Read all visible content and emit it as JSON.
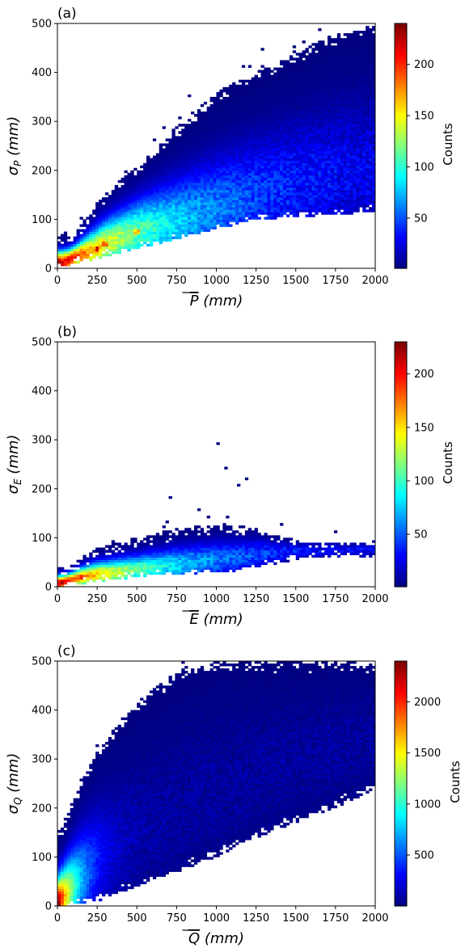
{
  "chart_data": [
    {
      "type": "heatmap",
      "panel_label": "(a)",
      "xlabel": {
        "text": "P (mm)",
        "overline": "P"
      },
      "ylabel": {
        "symbol": "σ",
        "subscript": "P",
        "unit": "(mm)"
      },
      "xlim": [
        0,
        2000
      ],
      "ylim": [
        0,
        500
      ],
      "xticks": [
        0,
        250,
        500,
        750,
        1000,
        1250,
        1500,
        1750,
        2000
      ],
      "yticks": [
        0,
        100,
        200,
        300,
        400,
        500
      ],
      "colorbar": {
        "label": "Counts",
        "min": 1,
        "max": 240,
        "ticks": [
          50,
          100,
          150,
          200
        ]
      },
      "colormap": "jet",
      "density_ridge": [
        [
          40,
          12
        ],
        [
          100,
          22
        ],
        [
          250,
          40
        ],
        [
          300,
          50
        ],
        [
          500,
          75
        ],
        [
          750,
          95
        ],
        [
          1000,
          120
        ],
        [
          1250,
          150
        ],
        [
          1500,
          170
        ],
        [
          1750,
          190
        ],
        [
          2000,
          200
        ]
      ],
      "hotspots": [
        [
          250,
          40,
          240
        ],
        [
          300,
          50,
          220
        ],
        [
          500,
          75,
          200
        ]
      ],
      "extent_upper_sigma": [
        [
          100,
          70
        ],
        [
          250,
          140
        ],
        [
          500,
          210
        ],
        [
          750,
          290
        ],
        [
          1000,
          360
        ],
        [
          1250,
          400
        ],
        [
          1500,
          440
        ],
        [
          1750,
          480
        ],
        [
          2000,
          500
        ]
      ],
      "extent_lower_sigma": [
        [
          50,
          5
        ],
        [
          250,
          20
        ],
        [
          500,
          40
        ],
        [
          750,
          60
        ],
        [
          1000,
          80
        ],
        [
          1250,
          100
        ],
        [
          1500,
          105
        ],
        [
          1750,
          110
        ],
        [
          2000,
          115
        ]
      ]
    },
    {
      "type": "heatmap",
      "panel_label": "(b)",
      "xlabel": {
        "text": "E (mm)",
        "overline": "E"
      },
      "ylabel": {
        "symbol": "σ",
        "subscript": "E",
        "unit": "(mm)"
      },
      "xlim": [
        0,
        2000
      ],
      "ylim": [
        0,
        500
      ],
      "xticks": [
        0,
        250,
        500,
        750,
        1000,
        1250,
        1500,
        1750,
        2000
      ],
      "yticks": [
        0,
        100,
        200,
        300,
        400,
        500
      ],
      "colorbar": {
        "label": "Counts",
        "min": 1,
        "max": 230,
        "ticks": [
          50,
          100,
          150,
          200
        ]
      },
      "colormap": "jet",
      "density_ridge": [
        [
          20,
          8
        ],
        [
          100,
          15
        ],
        [
          150,
          20
        ],
        [
          250,
          25
        ],
        [
          500,
          35
        ],
        [
          750,
          45
        ],
        [
          1000,
          55
        ],
        [
          1250,
          65
        ],
        [
          1550,
          75
        ]
      ],
      "hotspots": [
        [
          150,
          20,
          230
        ],
        [
          220,
          25,
          180
        ]
      ],
      "extent_upper_sigma": [
        [
          50,
          40
        ],
        [
          250,
          80
        ],
        [
          500,
          100
        ],
        [
          750,
          120
        ],
        [
          1000,
          130
        ],
        [
          1250,
          120
        ],
        [
          1550,
          90
        ]
      ],
      "extent_lower_sigma": [
        [
          20,
          2
        ],
        [
          250,
          10
        ],
        [
          500,
          20
        ],
        [
          750,
          25
        ],
        [
          1000,
          30
        ],
        [
          1250,
          35
        ],
        [
          1550,
          60
        ]
      ],
      "outliers": [
        [
          1000,
          290
        ],
        [
          1050,
          240
        ],
        [
          1130,
          205
        ],
        [
          1180,
          218
        ],
        [
          700,
          180
        ],
        [
          880,
          155
        ]
      ]
    },
    {
      "type": "heatmap",
      "panel_label": "(c)",
      "xlabel": {
        "text": "Q (mm)",
        "overline": "Q"
      },
      "ylabel": {
        "symbol": "σ",
        "subscript": "Q",
        "unit": "(mm)"
      },
      "xlim": [
        0,
        2000
      ],
      "ylim": [
        0,
        500
      ],
      "xticks": [
        0,
        250,
        500,
        750,
        1000,
        1250,
        1500,
        1750,
        2000
      ],
      "yticks": [
        0,
        100,
        200,
        300,
        400,
        500
      ],
      "colorbar": {
        "label": "Counts",
        "min": 1,
        "max": 2400,
        "ticks": [
          500,
          1000,
          1500,
          2000
        ]
      },
      "colormap": "jet",
      "density_ridge": [
        [
          5,
          2
        ],
        [
          30,
          15
        ],
        [
          100,
          40
        ],
        [
          250,
          90
        ],
        [
          500,
          150
        ],
        [
          750,
          200
        ],
        [
          1000,
          240
        ],
        [
          1250,
          270
        ],
        [
          1500,
          300
        ],
        [
          1750,
          320
        ],
        [
          2000,
          340
        ]
      ],
      "hotspots": [
        [
          5,
          2,
          2400
        ],
        [
          25,
          15,
          1200
        ],
        [
          60,
          30,
          600
        ]
      ],
      "extent_upper_sigma": [
        [
          25,
          160
        ],
        [
          150,
          260
        ],
        [
          300,
          340
        ],
        [
          500,
          420
        ],
        [
          750,
          480
        ],
        [
          1000,
          500
        ],
        [
          2000,
          500
        ]
      ],
      "extent_lower_sigma": [
        [
          0,
          0
        ],
        [
          250,
          10
        ],
        [
          500,
          40
        ],
        [
          750,
          70
        ],
        [
          1000,
          100
        ],
        [
          1250,
          140
        ],
        [
          1500,
          170
        ],
        [
          1750,
          200
        ],
        [
          2000,
          240
        ]
      ]
    }
  ]
}
